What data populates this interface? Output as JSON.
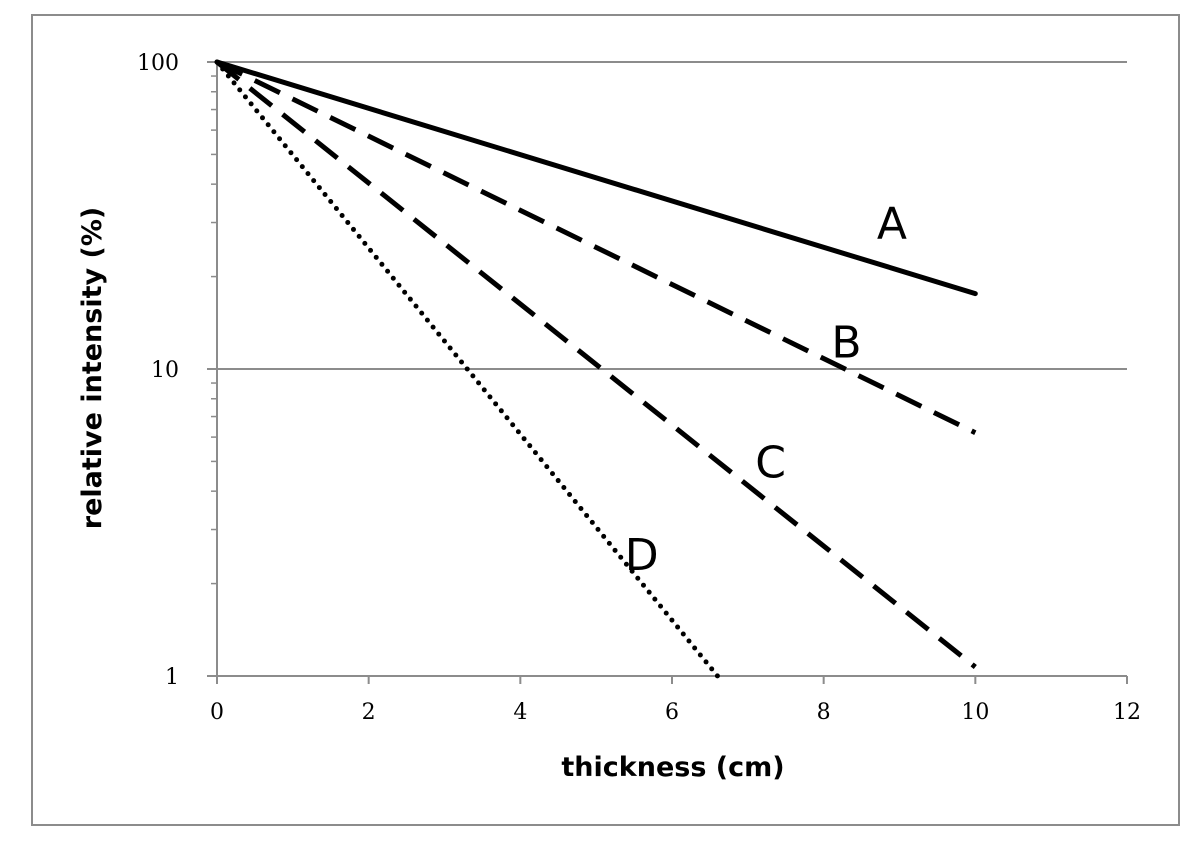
{
  "chart_data": {
    "type": "line",
    "title": "",
    "xlabel": "thickness (cm)",
    "ylabel": "relative intensity (%)",
    "x_axis": {
      "min": 0,
      "max": 12,
      "ticks": [
        0,
        2,
        4,
        6,
        8,
        10,
        12
      ],
      "tick_labels": [
        "0",
        "2",
        "4",
        "6",
        "8",
        "10",
        "12"
      ]
    },
    "y_axis": {
      "scale": "log",
      "min": 1,
      "max": 100,
      "major_ticks": [
        1,
        10,
        100
      ],
      "tick_labels": [
        "1",
        "10",
        "100"
      ]
    },
    "grid": {
      "horizontal_major": true,
      "vertical": false
    },
    "legend": "none",
    "series": [
      {
        "name": "A",
        "style": "solid",
        "x": [
          0,
          10
        ],
        "y": [
          100,
          17.6
        ]
      },
      {
        "name": "B",
        "style": "dashed",
        "x": [
          0,
          10
        ],
        "y": [
          100,
          6.2
        ]
      },
      {
        "name": "C",
        "style": "dashed",
        "x": [
          0,
          10
        ],
        "y": [
          100,
          1.07
        ]
      },
      {
        "name": "D",
        "style": "dotted",
        "x": [
          0,
          6.6
        ],
        "y": [
          100,
          1.0
        ]
      }
    ],
    "annotations": [
      {
        "text": "A",
        "series": "A",
        "x": 8.9,
        "y": 30
      },
      {
        "text": "B",
        "series": "B",
        "x": 8.3,
        "y": 12.3
      },
      {
        "text": "C",
        "series": "C",
        "x": 7.3,
        "y": 5.0
      },
      {
        "text": "D",
        "series": "D",
        "x": 5.6,
        "y": 2.5
      }
    ]
  }
}
